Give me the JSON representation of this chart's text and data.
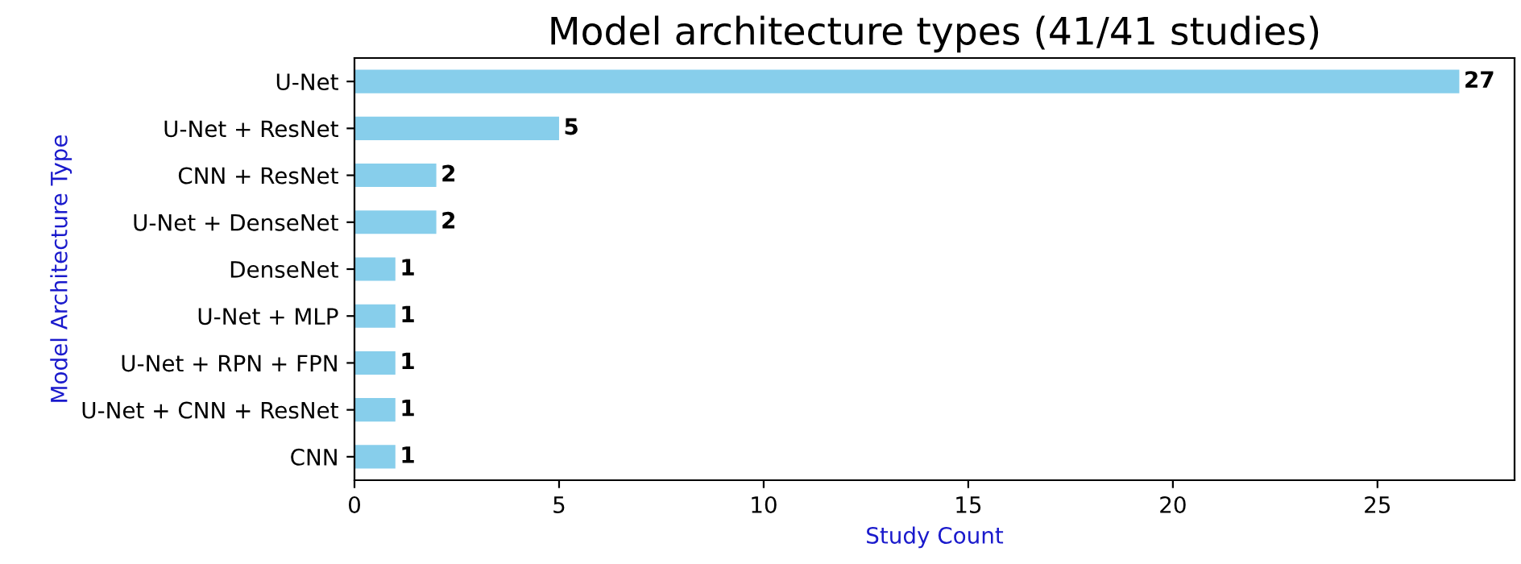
{
  "chart_data": {
    "type": "bar",
    "orientation": "horizontal",
    "title": "Model architecture types (41/41 studies)",
    "xlabel": "Study Count",
    "ylabel": "Model Architecture Type",
    "categories": [
      "U-Net",
      "U-Net + ResNet",
      "CNN + ResNet",
      "U-Net + DenseNet",
      "DenseNet",
      "U-Net + MLP",
      "U-Net + RPN + FPN",
      "U-Net + CNN + ResNet",
      "CNN"
    ],
    "values": [
      27,
      5,
      2,
      2,
      1,
      1,
      1,
      1,
      1
    ],
    "color": "#87ceeb",
    "xlim": [
      0,
      28.35
    ],
    "xticks": [
      0,
      5,
      10,
      15,
      20,
      25
    ],
    "data_labels": true,
    "grid": false,
    "legend": false
  }
}
